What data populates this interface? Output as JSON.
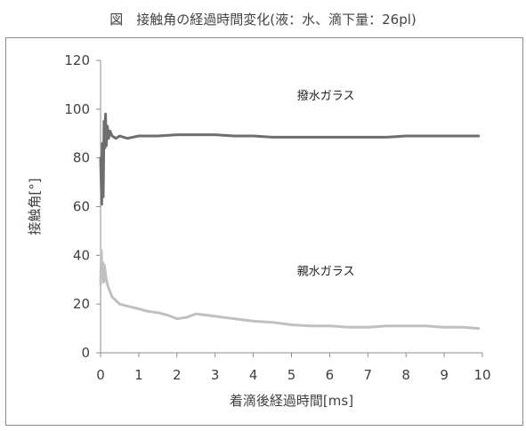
{
  "figure": {
    "title": "図　接触角の経過時間変化(液：水、滴下量：26pl)"
  },
  "chart_data": {
    "type": "line",
    "title": "図　接触角の経過時間変化(液：水、滴下量：26pl)",
    "xlabel": "着滴後経過時間[ms]",
    "ylabel": "接触角[°]",
    "xlim": [
      0,
      10
    ],
    "ylim": [
      0,
      120
    ],
    "xticks": [
      0,
      1,
      2,
      3,
      4,
      5,
      6,
      7,
      8,
      9,
      10
    ],
    "yticks": [
      0,
      20,
      40,
      60,
      80,
      100,
      120
    ],
    "grid": false,
    "legend": "none",
    "series": [
      {
        "name": "撥水ガラス",
        "color": "#6e6e6e",
        "x": [
          0.0,
          0.03,
          0.05,
          0.07,
          0.09,
          0.11,
          0.13,
          0.15,
          0.18,
          0.21,
          0.25,
          0.3,
          0.4,
          0.5,
          0.7,
          1.0,
          1.5,
          2.0,
          2.5,
          3.0,
          3.5,
          4.0,
          4.5,
          5.0,
          5.5,
          6.0,
          6.5,
          7.0,
          7.5,
          8.0,
          8.5,
          9.0,
          9.5,
          9.9
        ],
        "values": [
          80,
          61,
          86,
          64,
          95,
          84,
          98,
          85,
          93,
          88,
          91,
          89,
          88,
          89,
          88,
          89,
          89,
          89.5,
          89.5,
          89.5,
          89,
          89,
          88.5,
          88.5,
          88.5,
          88.5,
          88.5,
          88.5,
          88.5,
          89,
          89,
          89,
          89,
          89
        ],
        "label": "撥水ガラス"
      },
      {
        "name": "親水ガラス",
        "color": "#c0c0c0",
        "x": [
          0.0,
          0.02,
          0.04,
          0.06,
          0.08,
          0.1,
          0.15,
          0.2,
          0.3,
          0.5,
          0.75,
          1.0,
          1.25,
          1.5,
          1.75,
          2.0,
          2.25,
          2.5,
          2.75,
          3.0,
          3.5,
          4.0,
          4.5,
          5.0,
          5.5,
          6.0,
          6.5,
          7.0,
          7.5,
          8.0,
          8.5,
          9.0,
          9.5,
          9.9
        ],
        "values": [
          28,
          42,
          32,
          37,
          29,
          36,
          30,
          27,
          23,
          20,
          19,
          18,
          17,
          16.5,
          15.5,
          14,
          14.5,
          16,
          15.5,
          15,
          14,
          13,
          12.5,
          11.5,
          11,
          11,
          10.5,
          10.5,
          11,
          11,
          11,
          10.5,
          10.5,
          10
        ],
        "label": "親水ガラス"
      }
    ]
  }
}
